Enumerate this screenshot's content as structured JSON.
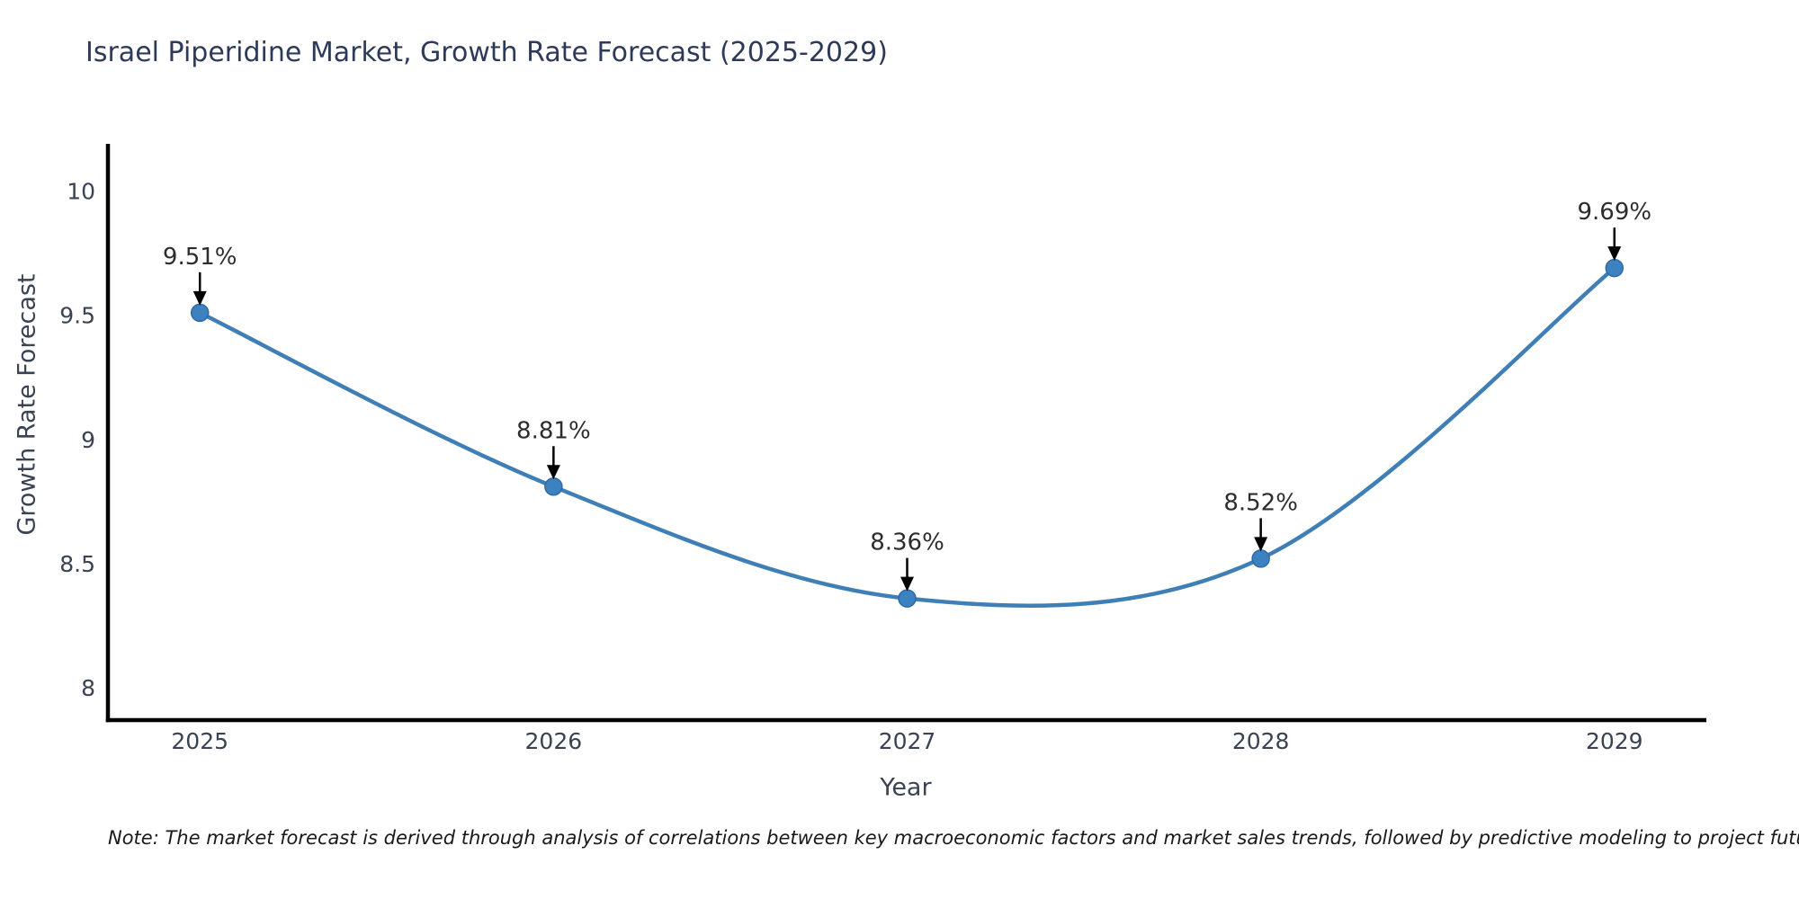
{
  "note": "Note: The market forecast is derived through analysis of correlations between key macroeconomic factors and market sales trends, followed by predictive modeling to project future sales",
  "chart_data": {
    "type": "line",
    "title": "Israel Piperidine Market, Growth Rate Forecast (2025-2029)",
    "xlabel": "Year",
    "ylabel": "Growth Rate Forecast",
    "x": [
      2025,
      2026,
      2027,
      2028,
      2029
    ],
    "series": [
      {
        "name": "Growth Rate Forecast",
        "values": [
          9.51,
          8.81,
          8.36,
          8.52,
          9.69
        ],
        "labels": [
          "9.51%",
          "8.81%",
          "8.36%",
          "8.52%",
          "9.69%"
        ]
      }
    ],
    "xticks": [
      "2025",
      "2026",
      "2027",
      "2028",
      "2029"
    ],
    "ytick_values": [
      8,
      8.5,
      9,
      9.5,
      10
    ],
    "yticks": [
      "8",
      "8.5",
      "9",
      "9.5",
      "10"
    ],
    "xlim": [
      2024.74,
      2029.26
    ],
    "ylim": [
      7.87,
      10.19
    ],
    "grid": false,
    "legend_position": "none",
    "line_color": "#3f7fb5",
    "marker_color": "#3d82c0",
    "marker_edge_color": "#2f6ba3",
    "arrow_color": "#000000",
    "axis_color": "#000000",
    "tick_label_color": "#3a4353",
    "annotation_text_color": "#2d2d2d",
    "title_color": "#2e3a59"
  }
}
